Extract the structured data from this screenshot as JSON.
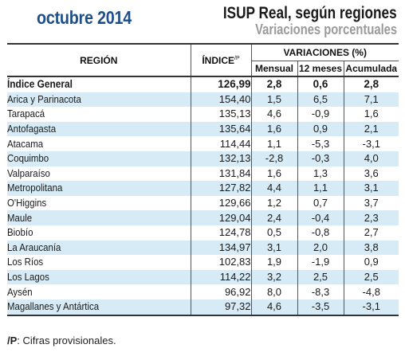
{
  "header": {
    "month": "octubre 2014",
    "title": "ISUP Real, según regiones",
    "subtitle": "Variaciones porcentuales"
  },
  "table": {
    "col_region": "REGIÓN",
    "col_index": "ÍNDICE",
    "col_index_sup": "/P",
    "col_variations": "VARIACIONES (%)",
    "col_monthly": "Mensual",
    "col_12m": "12 meses",
    "col_accum": "Acumulada",
    "rows": [
      {
        "region": "Índice General",
        "index": "126,99",
        "mensual": "2,8",
        "doce": "0,6",
        "acum": "2,8"
      },
      {
        "region": "Arica y Parinacota",
        "index": "154,40",
        "mensual": "1,5",
        "doce": "6,5",
        "acum": "7,1"
      },
      {
        "region": "Tarapacá",
        "index": "135,13",
        "mensual": "4,6",
        "doce": "-0,9",
        "acum": "1,6"
      },
      {
        "region": "Antofagasta",
        "index": "135,64",
        "mensual": "1,6",
        "doce": "0,9",
        "acum": "2,1"
      },
      {
        "region": "Atacama",
        "index": "114,44",
        "mensual": "1,1",
        "doce": "-5,3",
        "acum": "-3,1"
      },
      {
        "region": "Coquimbo",
        "index": "132,13",
        "mensual": "-2,8",
        "doce": "-0,3",
        "acum": "4,0"
      },
      {
        "region": "Valparaíso",
        "index": "131,84",
        "mensual": "1,6",
        "doce": "1,3",
        "acum": "3,6"
      },
      {
        "region": "Metropolitana",
        "index": "127,82",
        "mensual": "4,4",
        "doce": "1,1",
        "acum": "3,1"
      },
      {
        "region": "O'Higgins",
        "index": "129,66",
        "mensual": "1,2",
        "doce": "0,7",
        "acum": "3,7"
      },
      {
        "region": "Maule",
        "index": "129,04",
        "mensual": "2,4",
        "doce": "-0,4",
        "acum": "2,3"
      },
      {
        "region": "Biobío",
        "index": "124,78",
        "mensual": "0,5",
        "doce": "-0,8",
        "acum": "2,7"
      },
      {
        "region": "La Araucanía",
        "index": "134,97",
        "mensual": "3,1",
        "doce": "2,0",
        "acum": "3,8"
      },
      {
        "region": "Los Ríos",
        "index": "102,83",
        "mensual": "1,9",
        "doce": "-1,9",
        "acum": "0,9"
      },
      {
        "region": "Los Lagos",
        "index": "114,22",
        "mensual": "3,2",
        "doce": "2,5",
        "acum": "2,5"
      },
      {
        "region": "Aysén",
        "index": "96,92",
        "mensual": "8,0",
        "doce": "-8,3",
        "acum": "-4,8"
      },
      {
        "region": "Magallanes y Antártica",
        "index": "97,32",
        "mensual": "4,6",
        "doce": "-3,5",
        "acum": "-3,1"
      }
    ]
  },
  "footnote": {
    "mark": "/P",
    "text": ": Cifras provisionales."
  },
  "colors": {
    "month": "#1d4f8a",
    "subtitle": "#9a9a9a",
    "row_shade": "#d6ebf5"
  }
}
